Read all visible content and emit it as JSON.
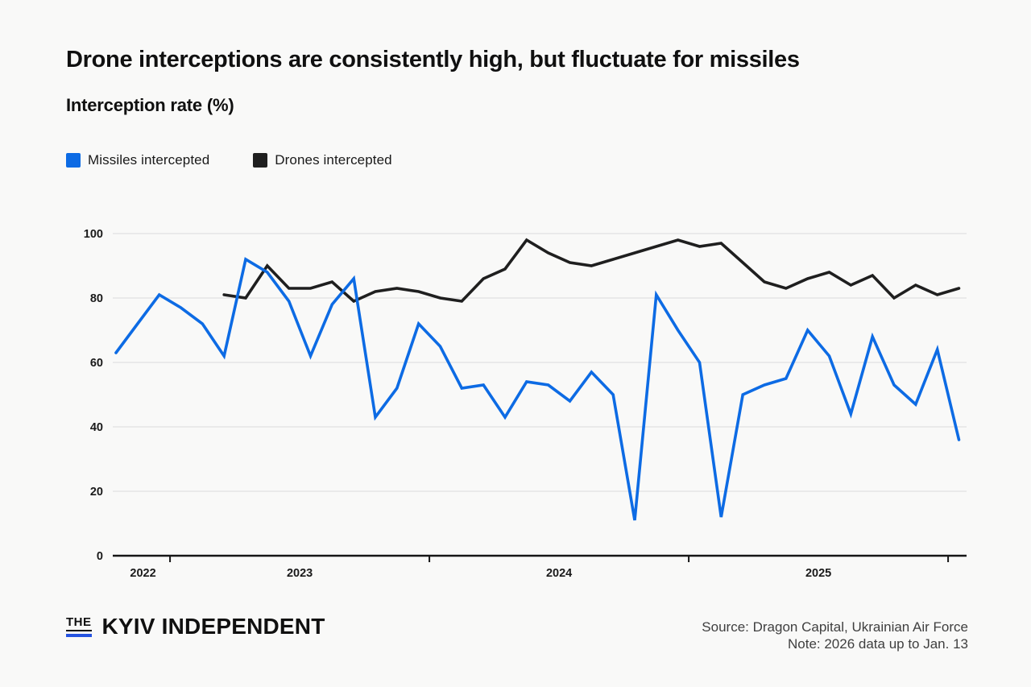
{
  "header": {
    "title": "Drone interceptions are consistently high, but fluctuate for missiles",
    "subtitle": "Interception rate (%)"
  },
  "legend": [
    {
      "label": "Missiles intercepted",
      "color": "#0d6be4"
    },
    {
      "label": "Drones intercepted",
      "color": "#1f1f1f"
    }
  ],
  "chart_data": {
    "type": "line",
    "x": [
      "2022-10",
      "2022-11",
      "2022-12",
      "2023-01",
      "2023-02",
      "2023-03",
      "2023-04",
      "2023-05",
      "2023-06",
      "2023-07",
      "2023-08",
      "2023-09",
      "2023-10",
      "2023-11",
      "2023-12",
      "2024-01",
      "2024-02",
      "2024-03",
      "2024-04",
      "2024-05",
      "2024-06",
      "2024-07",
      "2024-08",
      "2024-09",
      "2024-10",
      "2024-11",
      "2024-12",
      "2025-01",
      "2025-02",
      "2025-03",
      "2025-04",
      "2025-05",
      "2025-06",
      "2025-07",
      "2025-08",
      "2025-09",
      "2025-10",
      "2025-11",
      "2025-12",
      "2026-01"
    ],
    "series": [
      {
        "name": "Missiles intercepted",
        "color": "#0d6be4",
        "values": [
          63,
          72,
          81,
          77,
          72,
          62,
          92,
          88,
          79,
          62,
          78,
          86,
          43,
          52,
          72,
          65,
          52,
          53,
          43,
          54,
          53,
          48,
          57,
          50,
          11,
          81,
          70,
          60,
          12,
          50,
          53,
          55,
          70,
          62,
          44,
          68,
          53,
          47,
          64,
          36
        ]
      },
      {
        "name": "Drones intercepted",
        "color": "#1f1f1f",
        "values": [
          null,
          null,
          null,
          null,
          null,
          81,
          80,
          90,
          83,
          83,
          85,
          79,
          82,
          83,
          82,
          80,
          79,
          86,
          89,
          98,
          94,
          91,
          90,
          92,
          94,
          96,
          98,
          96,
          97,
          91,
          85,
          83,
          86,
          88,
          84,
          87,
          80,
          84,
          81,
          83
        ]
      }
    ],
    "title": "Drone interceptions are consistently high, but fluctuate for missiles",
    "ylabel": "Interception rate (%)",
    "ylim": [
      0,
      100
    ],
    "yticks": [
      0,
      20,
      40,
      60,
      80,
      100
    ],
    "year_labels": [
      "2022",
      "2023",
      "2024",
      "2025"
    ],
    "grid": "horizontal",
    "legend_position": "top-left",
    "note": "2026 data up to Jan. 13"
  },
  "footer": {
    "logo_the": "THE",
    "logo_main": "KYIV INDEPENDENT",
    "source_line1": "Source: Dragon Capital, Ukrainian Air Force",
    "source_line2": "Note: 2026 data up to Jan. 13"
  },
  "colors": {
    "background": "#f9f9f8",
    "gridline": "#e2e2e2",
    "axis": "#161616",
    "tick_label": "#1a1a1a",
    "source_text": "#3f3f3f",
    "logo_bar_blue": "#2553e0"
  }
}
